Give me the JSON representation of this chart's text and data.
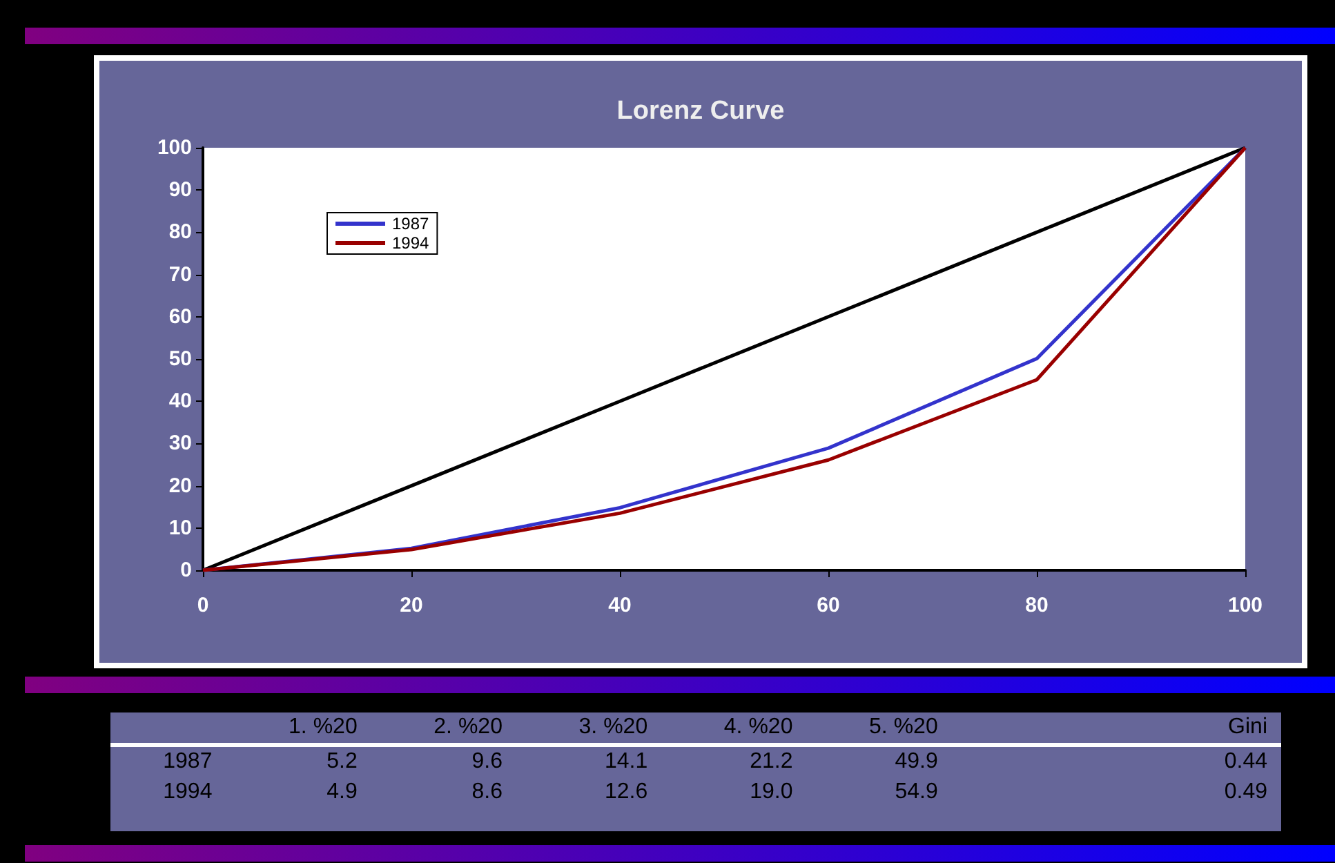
{
  "chart_data": [
    {
      "type": "line",
      "title": "Lorenz Curve",
      "x": [
        0,
        20,
        40,
        60,
        80,
        100
      ],
      "xlim": [
        0,
        100
      ],
      "xticks": [
        0,
        20,
        40,
        60,
        80,
        100
      ],
      "ylim": [
        0,
        100
      ],
      "yticks": [
        0,
        10,
        20,
        30,
        40,
        50,
        60,
        70,
        80,
        90,
        100
      ],
      "grid": false,
      "legend": "top left",
      "marker": "none",
      "line_style": "solid",
      "series": [
        {
          "color": "#000000",
          "values": [
            0,
            20,
            40,
            60,
            80,
            100
          ]
        },
        {
          "name": "1987",
          "color": "#3333cc",
          "values": [
            0,
            5.2,
            14.8,
            28.9,
            50.1,
            100
          ]
        },
        {
          "name": "1994",
          "color": "#990000",
          "values": [
            0,
            4.9,
            13.5,
            26.1,
            45.1,
            100
          ]
        }
      ]
    },
    {
      "type": "other",
      "categories": [
        "1. %20",
        "2. %20",
        "3. %20",
        "4. %20",
        "5. %20",
        "Gini"
      ],
      "series": [
        {
          "name": "1987",
          "values": [
            5.2,
            9.6,
            14.1,
            21.2,
            49.9,
            0.44
          ],
          "value_labels": [
            "5.2",
            "9.6",
            "14.1",
            "21.2",
            "49.9",
            "0.44"
          ]
        },
        {
          "name": "1994",
          "values": [
            4.9,
            8.6,
            12.6,
            19.0,
            54.9,
            0.49
          ],
          "value_labels": [
            "4.9",
            "8.6",
            "12.6",
            "19.0",
            "54.9",
            "0.49"
          ]
        }
      ]
    }
  ]
}
